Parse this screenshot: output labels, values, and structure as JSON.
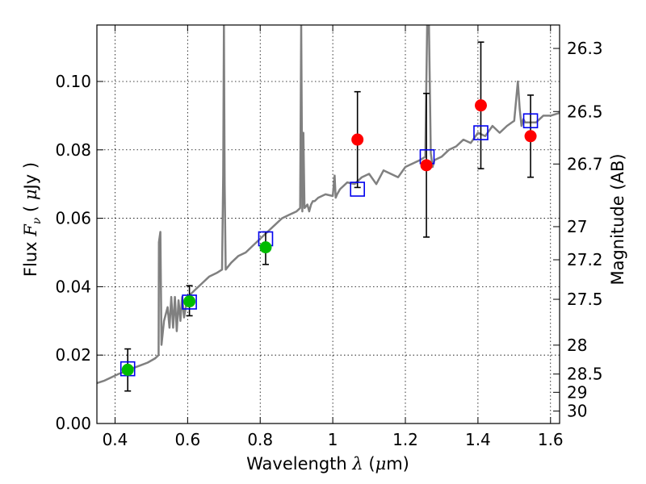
{
  "chart_data": {
    "type": "scatter",
    "title": "",
    "xlabel": "Wavelength  λ (μm)",
    "xlabel_parts": {
      "prefix": "Wavelength  ",
      "lambda": "λ",
      "open": " (",
      "mu": "μ",
      "unit": "m)"
    },
    "ylabel": "Flux  Fν  ( μJy )",
    "ylabel_parts": {
      "flux": "Flux  ",
      "F": "F",
      "nu": "ν",
      "open": "  ( ",
      "mu": "μ",
      "unit": "Jy )"
    },
    "y2label": "Magnitude (AB)",
    "xlim": [
      0.35,
      1.625
    ],
    "ylim": [
      0.0,
      0.1165
    ],
    "grid": true,
    "xticks": [
      {
        "value": 0.4,
        "label": "0.4"
      },
      {
        "value": 0.6,
        "label": "0.6"
      },
      {
        "value": 0.8,
        "label": "0.8"
      },
      {
        "value": 1.0,
        "label": "1"
      },
      {
        "value": 1.2,
        "label": "1.2"
      },
      {
        "value": 1.4,
        "label": "1.4"
      },
      {
        "value": 1.6,
        "label": "1.6"
      }
    ],
    "yticks": [
      {
        "value": 0.0,
        "label": "0.00"
      },
      {
        "value": 0.02,
        "label": "0.02"
      },
      {
        "value": 0.04,
        "label": "0.04"
      },
      {
        "value": 0.06,
        "label": "0.06"
      },
      {
        "value": 0.08,
        "label": "0.08"
      },
      {
        "value": 0.1,
        "label": "0.10"
      }
    ],
    "y2ticks": [
      {
        "mag": 26.3,
        "label": "26.3"
      },
      {
        "mag": 26.5,
        "label": "26.5"
      },
      {
        "mag": 26.7,
        "label": "26.7"
      },
      {
        "mag": 27.0,
        "label": "27"
      },
      {
        "mag": 27.2,
        "label": "27.2"
      },
      {
        "mag": 27.5,
        "label": "27.5"
      },
      {
        "mag": 28.0,
        "label": "28"
      },
      {
        "mag": 28.5,
        "label": "28.5"
      },
      {
        "mag": 29.0,
        "label": "29"
      },
      {
        "mag": 30.0,
        "label": "30"
      }
    ],
    "model_spectrum": {
      "name": "model SED",
      "color": "#808080",
      "x": [
        0.35,
        0.37,
        0.39,
        0.41,
        0.43,
        0.45,
        0.47,
        0.49,
        0.51,
        0.52,
        0.521,
        0.525,
        0.528,
        0.535,
        0.545,
        0.55,
        0.555,
        0.56,
        0.565,
        0.57,
        0.575,
        0.58,
        0.585,
        0.59,
        0.595,
        0.6,
        0.62,
        0.64,
        0.66,
        0.68,
        0.695,
        0.698,
        0.7,
        0.702,
        0.705,
        0.72,
        0.74,
        0.76,
        0.78,
        0.8,
        0.82,
        0.84,
        0.86,
        0.88,
        0.9,
        0.91,
        0.913,
        0.916,
        0.919,
        0.922,
        0.93,
        0.935,
        0.94,
        0.945,
        0.95,
        0.96,
        0.98,
        1.0,
        1.005,
        1.008,
        1.012,
        1.02,
        1.04,
        1.06,
        1.08,
        1.1,
        1.12,
        1.14,
        1.16,
        1.18,
        1.2,
        1.22,
        1.24,
        1.255,
        1.26,
        1.265,
        1.27,
        1.275,
        1.28,
        1.3,
        1.32,
        1.34,
        1.36,
        1.38,
        1.4,
        1.42,
        1.44,
        1.46,
        1.48,
        1.5,
        1.51,
        1.515,
        1.52,
        1.525,
        1.53,
        1.56,
        1.58,
        1.6,
        1.625
      ],
      "y": [
        0.0118,
        0.0125,
        0.0135,
        0.0145,
        0.0152,
        0.0162,
        0.017,
        0.0178,
        0.019,
        0.02,
        0.053,
        0.056,
        0.023,
        0.03,
        0.034,
        0.028,
        0.037,
        0.028,
        0.037,
        0.027,
        0.036,
        0.03,
        0.037,
        0.031,
        0.034,
        0.037,
        0.039,
        0.041,
        0.043,
        0.044,
        0.045,
        0.0725,
        0.1165,
        0.07,
        0.045,
        0.047,
        0.049,
        0.05,
        0.052,
        0.054,
        0.056,
        0.058,
        0.06,
        0.061,
        0.062,
        0.063,
        0.1165,
        0.062,
        0.085,
        0.063,
        0.064,
        0.062,
        0.064,
        0.065,
        0.065,
        0.066,
        0.067,
        0.0665,
        0.0725,
        0.066,
        0.067,
        0.0685,
        0.0705,
        0.07,
        0.072,
        0.073,
        0.07,
        0.074,
        0.073,
        0.072,
        0.075,
        0.076,
        0.077,
        0.078,
        0.1165,
        0.1165,
        0.079,
        0.075,
        0.077,
        0.078,
        0.08,
        0.081,
        0.083,
        0.082,
        0.085,
        0.084,
        0.087,
        0.085,
        0.087,
        0.0885,
        0.1,
        0.092,
        0.087,
        0.089,
        0.088,
        0.088,
        0.09,
        0.09,
        0.0908
      ]
    },
    "series": [
      {
        "name": "red observed points",
        "marker": "circle",
        "color": "#ff0000",
        "points": [
          {
            "x": 1.068,
            "y": 0.083,
            "err_low": 0.069,
            "err_high": 0.097
          },
          {
            "x": 1.258,
            "y": 0.0755,
            "err_low": 0.0545,
            "err_high": 0.0965
          },
          {
            "x": 1.408,
            "y": 0.093,
            "err_low": 0.0745,
            "err_high": 0.1115
          },
          {
            "x": 1.545,
            "y": 0.084,
            "err_low": 0.072,
            "err_high": 0.096
          }
        ]
      },
      {
        "name": "green observed points",
        "marker": "circle",
        "color": "#00bb00",
        "points": [
          {
            "x": 0.435,
            "y": 0.0157,
            "err_low": 0.0095,
            "err_high": 0.0218
          },
          {
            "x": 0.605,
            "y": 0.0357,
            "err_low": 0.0315,
            "err_high": 0.0403
          },
          {
            "x": 0.815,
            "y": 0.0515,
            "err_low": 0.0465,
            "err_high": 0.056
          }
        ]
      },
      {
        "name": "model band fluxes",
        "marker": "square",
        "color": "#0000ee",
        "points": [
          {
            "x": 0.435,
            "y": 0.016
          },
          {
            "x": 0.605,
            "y": 0.0355
          },
          {
            "x": 0.815,
            "y": 0.054
          },
          {
            "x": 1.068,
            "y": 0.0685
          },
          {
            "x": 1.26,
            "y": 0.078
          },
          {
            "x": 1.408,
            "y": 0.085
          },
          {
            "x": 1.545,
            "y": 0.0885
          }
        ]
      }
    ]
  }
}
